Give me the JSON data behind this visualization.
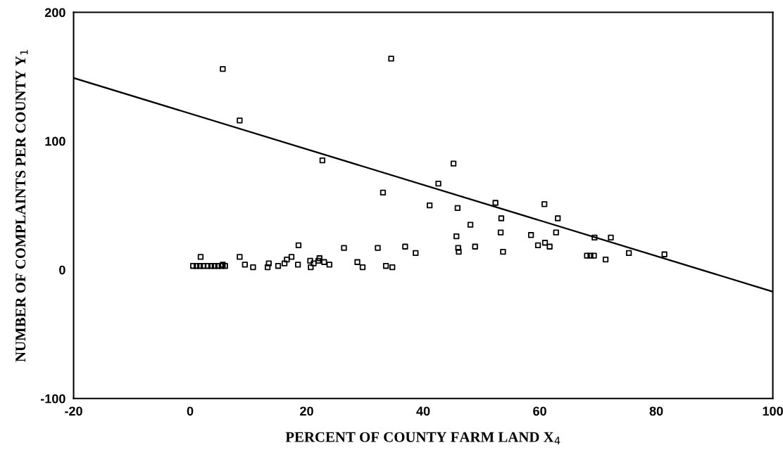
{
  "chart_data": {
    "type": "scatter",
    "xlabel": "PERCENT OF COUNTY FARM LAND X$_{4}$",
    "ylabel": "NUMBER OF COMPLAINTS PER COUNTY Y$_{1}$",
    "xlim": [
      -20,
      100
    ],
    "xticks": [
      -20,
      0,
      20,
      40,
      60,
      80,
      100
    ],
    "ylim": [
      -100,
      200
    ],
    "yticks": [
      -100,
      0,
      100,
      200
    ],
    "grid": false,
    "legend": false,
    "marker": "square",
    "series": [
      {
        "color": "#000000",
        "x": [
          5.6,
          8.5,
          34.5,
          22.7,
          33.1,
          45.2,
          42.6,
          41.1,
          45.9,
          52.4,
          60.8,
          53.4,
          63.1,
          48.1,
          53.3,
          62.8,
          45.7,
          58.5,
          32.2,
          36.9,
          38.7,
          46,
          46.1,
          48.9,
          53.7,
          59.7,
          60.9,
          61.7,
          33.6,
          34.7,
          69.4,
          72.2,
          75.3,
          81.4,
          68.1,
          68.7,
          69.3,
          71.3,
          1.8,
          0.5,
          1.1,
          1.7,
          2.3,
          3.0,
          3.6,
          4.2,
          4.8,
          5.4,
          6.0,
          5.6,
          8.5,
          9.4,
          10.8,
          13.3,
          13.5,
          15.1,
          16.2,
          16.6,
          17.4,
          18.6,
          18.5,
          20.6,
          20.7,
          21.2,
          22.2,
          22,
          23,
          23.9,
          26.4,
          28.7,
          29.6
        ],
        "values": [
          156,
          116,
          164,
          85,
          60,
          82.5,
          67,
          50,
          48,
          52,
          51,
          40,
          40,
          35,
          29,
          29,
          26,
          27,
          17,
          18,
          13,
          17,
          14,
          18,
          14,
          19,
          21,
          18,
          3,
          2,
          25,
          25,
          13,
          12,
          11,
          11,
          11,
          8,
          10,
          3,
          3,
          3,
          3,
          3,
          3,
          3,
          3,
          3,
          3,
          4,
          10,
          4,
          2,
          2,
          5,
          3,
          5,
          8,
          10,
          19,
          4,
          7,
          2,
          5,
          9,
          7,
          6,
          4,
          17,
          6,
          2
        ]
      },
      {
        "type": "line",
        "color": "#000000",
        "marker": "none",
        "line_style": "solid",
        "x": [
          -20,
          100
        ],
        "values": [
          149,
          -17
        ]
      }
    ]
  }
}
